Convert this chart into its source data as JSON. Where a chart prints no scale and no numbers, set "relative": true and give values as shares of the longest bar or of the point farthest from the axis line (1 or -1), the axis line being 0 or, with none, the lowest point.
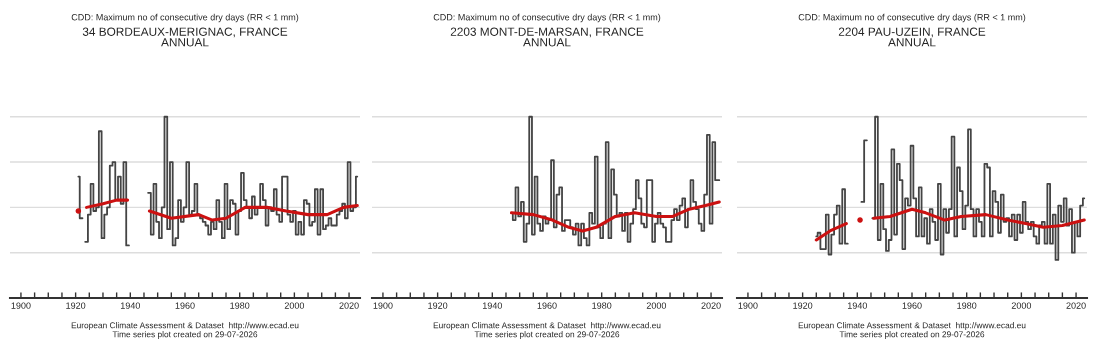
{
  "chart_data": [
    {
      "type": "step",
      "title": "CDD: Maximum no of consecutive dry days (RR < 1 mm)",
      "subtitle": "34 BORDEAUX-MERIGNAC, FRANCE\nANNUAL",
      "relative": true,
      "grid": "y",
      "tick_labels": "x",
      "xlim": [
        1896,
        2024
      ],
      "xticks": [
        1900,
        {
          "value": 1905,
          "label": null
        },
        {
          "value": 1910,
          "label": null
        },
        {
          "value": 1915,
          "label": null
        },
        1920,
        {
          "value": 1925,
          "label": null
        },
        {
          "value": 1930,
          "label": null
        },
        {
          "value": 1935,
          "label": null
        },
        1940,
        {
          "value": 1945,
          "label": null
        },
        {
          "value": 1950,
          "label": null
        },
        {
          "value": 1955,
          "label": null
        },
        1960,
        {
          "value": 1965,
          "label": null
        },
        {
          "value": 1970,
          "label": null
        },
        {
          "value": 1975,
          "label": null
        },
        1980,
        {
          "value": 1985,
          "label": null
        },
        {
          "value": 1990,
          "label": null
        },
        {
          "value": 1995,
          "label": null
        },
        2000,
        {
          "value": 2005,
          "label": null
        },
        {
          "value": 2010,
          "label": null
        },
        {
          "value": 2015,
          "label": null
        },
        2020
      ],
      "annotations": [
        "European Climate Assessment & Dataset  http://www.ecad.eu",
        "Time series plot created on 29-07-2026"
      ],
      "series": [
        {
          "color": "#444444",
          "x": [
            1921,
            1922,
            1923,
            1924,
            1925,
            1926,
            1927,
            1928,
            1929,
            1930,
            1931,
            1932,
            1933,
            1934,
            1935,
            1936,
            1937,
            1938,
            1939,
            1940,
            1941,
            1942,
            1943,
            1944,
            1945,
            1946,
            1947,
            1948,
            1949,
            1950,
            1951,
            1952,
            1953,
            1954,
            1955,
            1956,
            1957,
            1958,
            1959,
            1960,
            1961,
            1962,
            1963,
            1964,
            1965,
            1966,
            1967,
            1968,
            1969,
            1970,
            1971,
            1972,
            1973,
            1974,
            1975,
            1976,
            1977,
            1978,
            1979,
            1980,
            1981,
            1982,
            1983,
            1984,
            1985,
            1986,
            1987,
            1988,
            1989,
            1990,
            1991,
            1992,
            1993,
            1994,
            1995,
            1996,
            1997,
            1998,
            1999,
            2000,
            2001,
            2002,
            2003,
            2004,
            2005,
            2006,
            2007,
            2008,
            2009,
            2010,
            2011,
            2012,
            2013,
            2014,
            2015,
            2016,
            2017,
            2018,
            2019,
            2020,
            2021,
            2022,
            2023
          ],
          "values": [
            0.67,
            0.44,
            null,
            0.31,
            0.46,
            0.63,
            0.48,
            0.5,
            0.92,
            0.33,
            0.46,
            0.5,
            0.73,
            0.75,
            0.54,
            0.67,
            0.52,
            0.75,
            0.29,
            null,
            null,
            null,
            null,
            null,
            null,
            null,
            0.58,
            0.35,
            0.63,
            0.42,
            0.33,
            0.5,
            1.0,
            0.38,
            0.75,
            0.29,
            0.33,
            0.54,
            0.42,
            0.5,
            0.75,
            0.46,
            0.48,
            0.63,
            0.46,
            0.44,
            0.42,
            0.4,
            0.35,
            0.42,
            0.38,
            0.54,
            0.42,
            0.33,
            0.63,
            0.38,
            0.54,
            0.52,
            0.35,
            0.48,
            0.69,
            0.54,
            0.5,
            0.44,
            0.56,
            0.46,
            0.5,
            0.63,
            0.54,
            0.4,
            0.5,
            0.48,
            0.6,
            0.46,
            0.42,
            0.67,
            0.67,
            0.46,
            0.42,
            0.48,
            0.35,
            0.42,
            0.35,
            0.54,
            0.52,
            0.4,
            0.42,
            0.6,
            0.35,
            0.6,
            0.38,
            0.4,
            0.44,
            0.4,
            0.4,
            0.46,
            0.48,
            0.52,
            0.44,
            0.75,
            0.48,
            0.5,
            0.67
          ]
        },
        {
          "type": "line",
          "color": "#cc1111",
          "x": [
            1921,
            1923,
            1924,
            1930,
            1935,
            1939,
            1940,
            1947,
            1955,
            1965,
            1970,
            1975,
            1982,
            1990,
            1997,
            2005,
            2012,
            2018,
            2023
          ],
          "values": [
            0.48,
            null,
            0.5,
            0.52,
            0.54,
            0.54,
            null,
            0.48,
            0.44,
            0.46,
            0.43,
            0.44,
            0.5,
            0.5,
            0.48,
            0.46,
            0.46,
            0.5,
            0.51
          ]
        }
      ]
    },
    {
      "type": "step",
      "title": "CDD: Maximum no of consecutive dry days (RR < 1 mm)",
      "subtitle": "2203 MONT-DE-MARSAN, FRANCE\nANNUAL",
      "relative": true,
      "grid": "y",
      "tick_labels": "x",
      "xlim": [
        1896,
        2024
      ],
      "xticks": [
        1900,
        {
          "value": 1905,
          "label": null
        },
        {
          "value": 1910,
          "label": null
        },
        {
          "value": 1915,
          "label": null
        },
        1920,
        {
          "value": 1925,
          "label": null
        },
        {
          "value": 1930,
          "label": null
        },
        {
          "value": 1935,
          "label": null
        },
        1940,
        {
          "value": 1945,
          "label": null
        },
        {
          "value": 1950,
          "label": null
        },
        {
          "value": 1955,
          "label": null
        },
        1960,
        {
          "value": 1965,
          "label": null
        },
        {
          "value": 1970,
          "label": null
        },
        {
          "value": 1975,
          "label": null
        },
        1980,
        {
          "value": 1985,
          "label": null
        },
        {
          "value": 1990,
          "label": null
        },
        {
          "value": 1995,
          "label": null
        },
        2000,
        {
          "value": 2005,
          "label": null
        },
        {
          "value": 2010,
          "label": null
        },
        {
          "value": 2015,
          "label": null
        },
        2020
      ],
      "annotations": [
        "European Climate Assessment & Dataset  http://www.ecad.eu",
        "Time series plot created on 29-07-2026"
      ],
      "series": [
        {
          "color": "#444444",
          "x": [
            1947,
            1948,
            1949,
            1950,
            1951,
            1952,
            1953,
            1954,
            1955,
            1956,
            1957,
            1958,
            1959,
            1960,
            1961,
            1962,
            1963,
            1964,
            1965,
            1966,
            1967,
            1968,
            1969,
            1970,
            1971,
            1972,
            1973,
            1974,
            1975,
            1976,
            1977,
            1978,
            1979,
            1980,
            1981,
            1982,
            1983,
            1984,
            1985,
            1986,
            1987,
            1988,
            1989,
            1990,
            1991,
            1992,
            1993,
            1994,
            1995,
            1996,
            1997,
            1998,
            1999,
            2000,
            2001,
            2002,
            2003,
            2004,
            2005,
            2006,
            2007,
            2008,
            2009,
            2010,
            2011,
            2012,
            2013,
            2014,
            2015,
            2016,
            2017,
            2018,
            2019,
            2020,
            2021,
            2022,
            2023
          ],
          "values": [
            0.47,
            0.43,
            0.61,
            0.45,
            0.53,
            0.31,
            0.41,
            1.0,
            0.35,
            0.67,
            0.41,
            0.37,
            0.45,
            0.41,
            0.43,
            0.76,
            0.39,
            0.57,
            0.61,
            0.37,
            0.43,
            0.43,
            0.39,
            0.35,
            0.41,
            0.29,
            0.41,
            0.33,
            0.29,
            0.47,
            0.41,
            0.78,
            0.39,
            0.33,
            0.41,
            0.86,
            0.33,
            0.71,
            0.57,
            0.45,
            0.47,
            0.37,
            0.47,
            0.31,
            0.41,
            0.49,
            0.65,
            0.55,
            0.41,
            0.39,
            0.65,
            0.65,
            0.31,
            0.41,
            0.47,
            0.41,
            0.39,
            0.31,
            0.31,
            0.43,
            0.49,
            0.43,
            0.51,
            0.55,
            0.39,
            0.49,
            0.65,
            0.53,
            0.49,
            0.41,
            0.37,
            0.57,
            0.9,
            0.41,
            0.86,
            0.65,
            0.65
          ]
        },
        {
          "type": "line",
          "color": "#cc1111",
          "x": [
            1947,
            1955,
            1962,
            1968,
            1973,
            1978,
            1985,
            1992,
            2000,
            2006,
            2012,
            2018,
            2023
          ],
          "values": [
            0.47,
            0.46,
            0.43,
            0.39,
            0.37,
            0.39,
            0.45,
            0.47,
            0.45,
            0.45,
            0.49,
            0.51,
            0.53
          ]
        }
      ]
    },
    {
      "type": "step",
      "title": "CDD: Maximum no of consecutive dry days (RR < 1 mm)",
      "subtitle": "2204 PAU-UZEIN, FRANCE\nANNUAL",
      "relative": true,
      "grid": "y",
      "tick_labels": "x",
      "xlim": [
        1896,
        2024
      ],
      "xticks": [
        1900,
        {
          "value": 1905,
          "label": null
        },
        {
          "value": 1910,
          "label": null
        },
        {
          "value": 1915,
          "label": null
        },
        1920,
        {
          "value": 1925,
          "label": null
        },
        {
          "value": 1930,
          "label": null
        },
        {
          "value": 1935,
          "label": null
        },
        1940,
        {
          "value": 1945,
          "label": null
        },
        {
          "value": 1950,
          "label": null
        },
        {
          "value": 1955,
          "label": null
        },
        1960,
        {
          "value": 1965,
          "label": null
        },
        {
          "value": 1970,
          "label": null
        },
        {
          "value": 1975,
          "label": null
        },
        1980,
        {
          "value": 1985,
          "label": null
        },
        {
          "value": 1990,
          "label": null
        },
        {
          "value": 1995,
          "label": null
        },
        2000,
        {
          "value": 2005,
          "label": null
        },
        {
          "value": 2010,
          "label": null
        },
        {
          "value": 2015,
          "label": null
        },
        2020
      ],
      "annotations": [
        "European Climate Assessment & Dataset  http://www.ecad.eu",
        "Time series plot created on 29-07-2026"
      ],
      "series": [
        {
          "color": "#444444",
          "x": [
            1925,
            1926,
            1927,
            1928,
            1929,
            1930,
            1931,
            1932,
            1933,
            1934,
            1935,
            1936,
            1937,
            1938,
            1939,
            1940,
            1941,
            1942,
            1943,
            1944,
            1945,
            1946,
            1947,
            1948,
            1949,
            1950,
            1951,
            1952,
            1953,
            1954,
            1955,
            1956,
            1957,
            1958,
            1959,
            1960,
            1961,
            1962,
            1963,
            1964,
            1965,
            1966,
            1967,
            1968,
            1969,
            1970,
            1971,
            1972,
            1973,
            1974,
            1975,
            1976,
            1977,
            1978,
            1979,
            1980,
            1981,
            1982,
            1983,
            1984,
            1985,
            1986,
            1987,
            1988,
            1989,
            1990,
            1991,
            1992,
            1993,
            1994,
            1995,
            1996,
            1997,
            1998,
            1999,
            2000,
            2001,
            2002,
            2003,
            2004,
            2005,
            2006,
            2007,
            2008,
            2009,
            2010,
            2011,
            2012,
            2013,
            2014,
            2015,
            2016,
            2017,
            2018,
            2019,
            2020,
            2021,
            2022,
            2023
          ],
          "values": [
            0.34,
            0.36,
            0.27,
            0.27,
            0.46,
            0.24,
            0.35,
            0.46,
            0.51,
            0.3,
            0.6,
            0.3,
            null,
            null,
            null,
            null,
            null,
            0.53,
            0.87,
            null,
            null,
            0.44,
            1.0,
            0.32,
            0.63,
            0.38,
            0.26,
            0.32,
            0.82,
            0.35,
            0.74,
            0.65,
            0.27,
            0.55,
            0.51,
            0.84,
            0.55,
            0.34,
            0.61,
            0.34,
            0.44,
            0.3,
            0.49,
            0.42,
            0.32,
            0.63,
            0.24,
            0.49,
            0.36,
            0.49,
            0.89,
            0.34,
            0.72,
            0.59,
            0.38,
            0.51,
            0.93,
            0.49,
            0.34,
            0.49,
            0.42,
            0.34,
            0.74,
            0.72,
            0.34,
            0.59,
            0.53,
            0.36,
            0.57,
            0.42,
            0.44,
            0.34,
            0.46,
            0.32,
            0.46,
            0.36,
            0.53,
            0.42,
            0.38,
            0.42,
            0.34,
            0.3,
            0.4,
            0.42,
            0.3,
            0.63,
            0.3,
            0.46,
            0.21,
            0.51,
            0.42,
            0.55,
            0.4,
            0.49,
            0.25,
            0.42,
            0.34,
            0.51,
            0.55
          ]
        },
        {
          "type": "line",
          "color": "#cc1111",
          "x": [
            1925,
            1930,
            1936,
            1937,
            1941,
            1943,
            1946,
            1952,
            1960,
            1965,
            1972,
            1978,
            1987,
            1995,
            2002,
            2008,
            2015,
            2023
          ],
          "values": [
            0.32,
            0.37,
            0.41,
            null,
            0.43,
            null,
            0.44,
            0.45,
            0.49,
            0.47,
            0.43,
            0.45,
            0.46,
            0.43,
            0.41,
            0.39,
            0.4,
            0.43
          ]
        }
      ]
    }
  ]
}
